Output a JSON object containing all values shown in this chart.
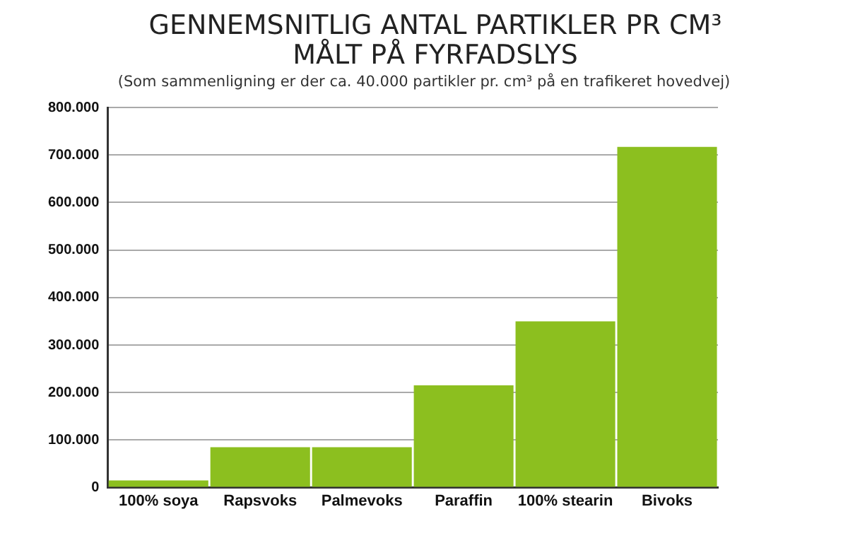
{
  "chart_data": {
    "type": "bar",
    "title": "GENNEMSNITLIG ANTAL PARTIKLER PR CM³ MÅLT PÅ FYRFADSLYS",
    "subtitle": "(Som sammenligning er der ca. 40.000 partikler pr. cm³ på en trafikeret hovedvej)",
    "categories": [
      "100% soya",
      "Rapsvoks",
      "Palmevoks",
      "Paraffin",
      "100% stearin",
      "Bivoks"
    ],
    "values": [
      15000,
      85000,
      85000,
      215000,
      350000,
      717000
    ],
    "color": "#8cbf1f",
    "ylim": [
      0,
      800000
    ],
    "yticks": [
      0,
      {
        "value": 100000,
        "label": "100.000"
      },
      {
        "value": 200000,
        "label": "200.000"
      },
      {
        "value": 300000,
        "label": "300.000"
      },
      {
        "value": 400000,
        "label": "400.000"
      },
      {
        "value": 500000,
        "label": "500.000"
      },
      {
        "value": 600000,
        "label": "600.000"
      },
      {
        "value": 700000,
        "label": "700.000"
      },
      {
        "value": 800000,
        "label": "800.000"
      }
    ],
    "grid": "y",
    "legend": false
  }
}
